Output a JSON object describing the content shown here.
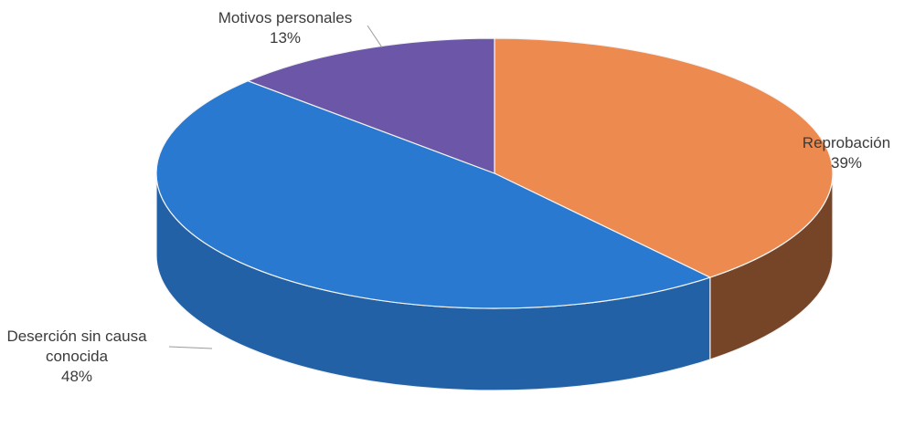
{
  "chart_data": {
    "type": "pie",
    "style": "3d",
    "title": "",
    "slices": [
      {
        "name": "Reprobación",
        "value": 39,
        "label_lines": [
          "Reprobación",
          "39%"
        ],
        "color": "#ec8a4f"
      },
      {
        "name": "Deserción sin causa conocida",
        "value": 48,
        "label_lines": [
          "Deserción sin causa",
          "conocida",
          "48%"
        ],
        "color": "#2a79d0"
      },
      {
        "name": "Motivos personales",
        "value": 13,
        "label_lines": [
          "Motivos personales",
          "13%"
        ],
        "color": "#6b56a8"
      }
    ],
    "legend": "none",
    "data_labels": "outside"
  }
}
